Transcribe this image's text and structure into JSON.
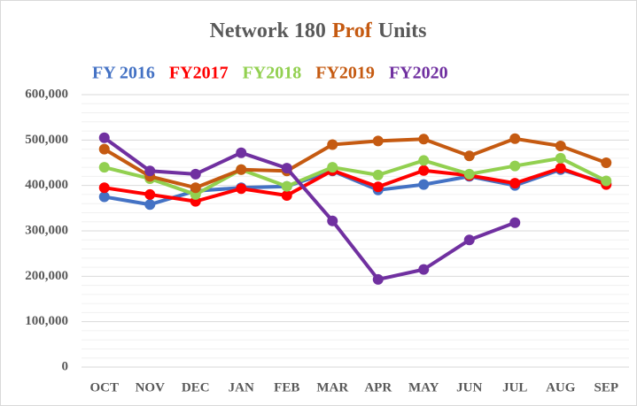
{
  "chart_data": {
    "type": "line",
    "title": [
      {
        "text": "Network 180",
        "color": "#595959"
      },
      {
        "text": "Prof",
        "color": "#c55a11"
      },
      {
        "text": "Units",
        "color": "#595959"
      }
    ],
    "categories": [
      "OCT",
      "NOV",
      "DEC",
      "JAN",
      "FEB",
      "MAR",
      "APR",
      "MAY",
      "JUN",
      "JUL",
      "AUG",
      "SEP"
    ],
    "series": [
      {
        "name": "FY 2016",
        "color": "#4472c4",
        "values": [
          375000,
          358000,
          388000,
          395000,
          398000,
          432000,
          390000,
          402000,
          420000,
          400000,
          435000,
          405000
        ]
      },
      {
        "name": "FY2017",
        "color": "#ff0000",
        "values": [
          395000,
          380000,
          365000,
          393000,
          378000,
          433000,
          397000,
          433000,
          422000,
          405000,
          438000,
          402000
        ]
      },
      {
        "name": "FY2018",
        "color": "#92d050",
        "values": [
          440000,
          415000,
          380000,
          435000,
          398000,
          440000,
          423000,
          455000,
          425000,
          443000,
          460000,
          410000
        ]
      },
      {
        "name": "FY2019",
        "color": "#c55a11",
        "values": [
          480000,
          420000,
          395000,
          435000,
          432000,
          490000,
          498000,
          502000,
          465000,
          503000,
          487000,
          450000
        ]
      },
      {
        "name": "FY2020",
        "color": "#7030a0",
        "values": [
          505000,
          432000,
          425000,
          472000,
          438000,
          322000,
          193000,
          215000,
          280000,
          318000,
          null,
          null
        ]
      }
    ],
    "ylim": [
      0,
      600000
    ],
    "yticks": [
      0,
      {
        "value": 100000,
        "label": "100,000"
      },
      {
        "value": 200000,
        "label": "200,000"
      },
      {
        "value": 300000,
        "label": "300,000"
      },
      {
        "value": 400000,
        "label": "400,000"
      },
      {
        "value": 500000,
        "label": "500,000"
      },
      {
        "value": 600000,
        "label": "600,000"
      }
    ],
    "grid": true,
    "legend": "top"
  }
}
